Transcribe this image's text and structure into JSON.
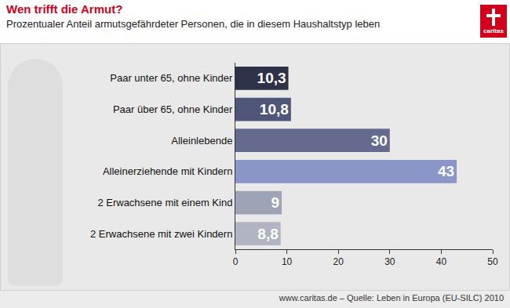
{
  "chart_data": {
    "type": "bar",
    "orientation": "horizontal",
    "title": "Wen trifft die Armut?",
    "subtitle": "Prozentualer Anteil armutsgefährdeter Personen, die in diesem Haushaltstyp leben",
    "source": "www.caritas.de – Quelle: Leben in Europa (EU-SILC) 2010",
    "logo": "caritas",
    "categories": [
      "Paar unter 65, ohne Kinder",
      "Paar über 65, ohne Kinder",
      "Alleinlebende",
      "Alleinerziehende mit Kindern",
      "2 Erwachsene mit einem Kind",
      "2 Erwachsene mit zwei Kindern"
    ],
    "values": [
      10.3,
      10.8,
      30,
      43,
      9,
      8.8
    ],
    "value_labels": [
      "10,3",
      "10,8",
      "30",
      "43",
      "9",
      "8,8"
    ],
    "colors": [
      "#2e3249",
      "#50557a",
      "#656a8f",
      "#8a95c8",
      "#9ea3b6",
      "#b1b4c3"
    ],
    "xlim": [
      0,
      50
    ],
    "xticks": [
      0,
      10,
      20,
      30,
      40,
      50
    ],
    "grid": false,
    "data_labels": true
  }
}
